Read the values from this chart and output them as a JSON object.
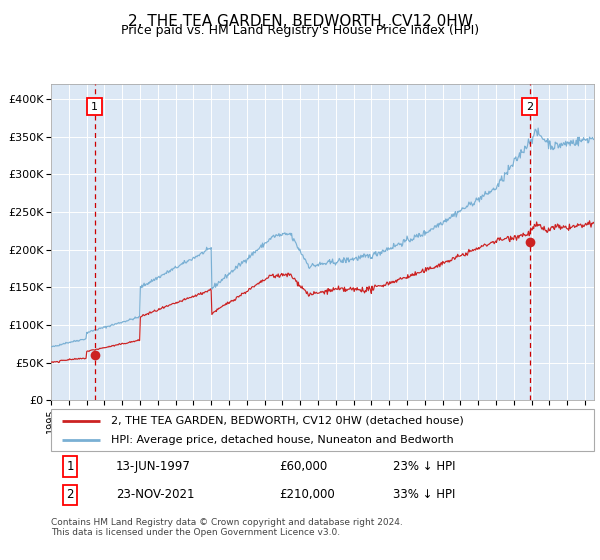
{
  "title": "2, THE TEA GARDEN, BEDWORTH, CV12 0HW",
  "subtitle": "Price paid vs. HM Land Registry's House Price Index (HPI)",
  "ylim": [
    0,
    420000
  ],
  "yticks": [
    0,
    50000,
    100000,
    150000,
    200000,
    250000,
    300000,
    350000,
    400000
  ],
  "ytick_labels": [
    "£0",
    "£50K",
    "£100K",
    "£150K",
    "£200K",
    "£250K",
    "£300K",
    "£350K",
    "£400K"
  ],
  "hpi_color": "#7ab0d4",
  "price_color": "#cc2222",
  "vline1_color": "#cc0000",
  "vline2_color": "#cc0000",
  "bg_color": "#dce8f5",
  "grid_color": "#ffffff",
  "sale1_year": 1997.45,
  "sale1_price": 60000,
  "sale2_year": 2021.9,
  "sale2_price": 210000,
  "legend_entry1": "2, THE TEA GARDEN, BEDWORTH, CV12 0HW (detached house)",
  "legend_entry2": "HPI: Average price, detached house, Nuneaton and Bedworth",
  "note1_date": "13-JUN-1997",
  "note1_price": "£60,000",
  "note1_hpi": "23% ↓ HPI",
  "note2_date": "23-NOV-2021",
  "note2_price": "£210,000",
  "note2_hpi": "33% ↓ HPI",
  "footer": "Contains HM Land Registry data © Crown copyright and database right 2024.\nThis data is licensed under the Open Government Licence v3.0.",
  "xlim_start": 1995.0,
  "xlim_end": 2025.5
}
